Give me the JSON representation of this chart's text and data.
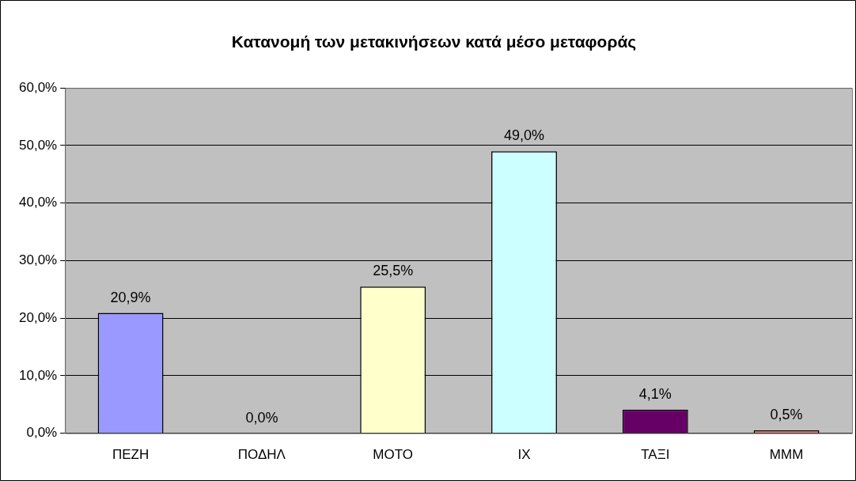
{
  "chart_data": {
    "type": "bar",
    "title": "Κατανομή των μετακινήσεων κατά μέσο μεταφοράς",
    "categories": [
      "ΠΕΖΗ",
      "ΠΟΔΗΛ",
      "ΜΟΤΟ",
      "ΙΧ",
      "ΤΑΞΙ",
      "ΜΜΜ"
    ],
    "values": [
      20.9,
      0.0,
      25.5,
      49.0,
      4.1,
      0.5
    ],
    "colors": [
      "#9999ff",
      "#993366",
      "#ffffcc",
      "#ccffff",
      "#660066",
      "#ff8080"
    ],
    "value_labels": [
      "20,9%",
      "0,0%",
      "25,5%",
      "49,0%",
      "4,1%",
      "0,5%"
    ],
    "ylim": [
      0,
      60
    ],
    "yticks": [
      {
        "value": 0,
        "label": "0,0%"
      },
      {
        "value": 10,
        "label": "10,0%"
      },
      {
        "value": 20,
        "label": "20,0%"
      },
      {
        "value": 30,
        "label": "30,0%"
      },
      {
        "value": 40,
        "label": "40,0%"
      },
      {
        "value": 50,
        "label": "50,0%"
      },
      {
        "value": 60,
        "label": "60,0%"
      }
    ],
    "grid": "y",
    "legend": false
  }
}
